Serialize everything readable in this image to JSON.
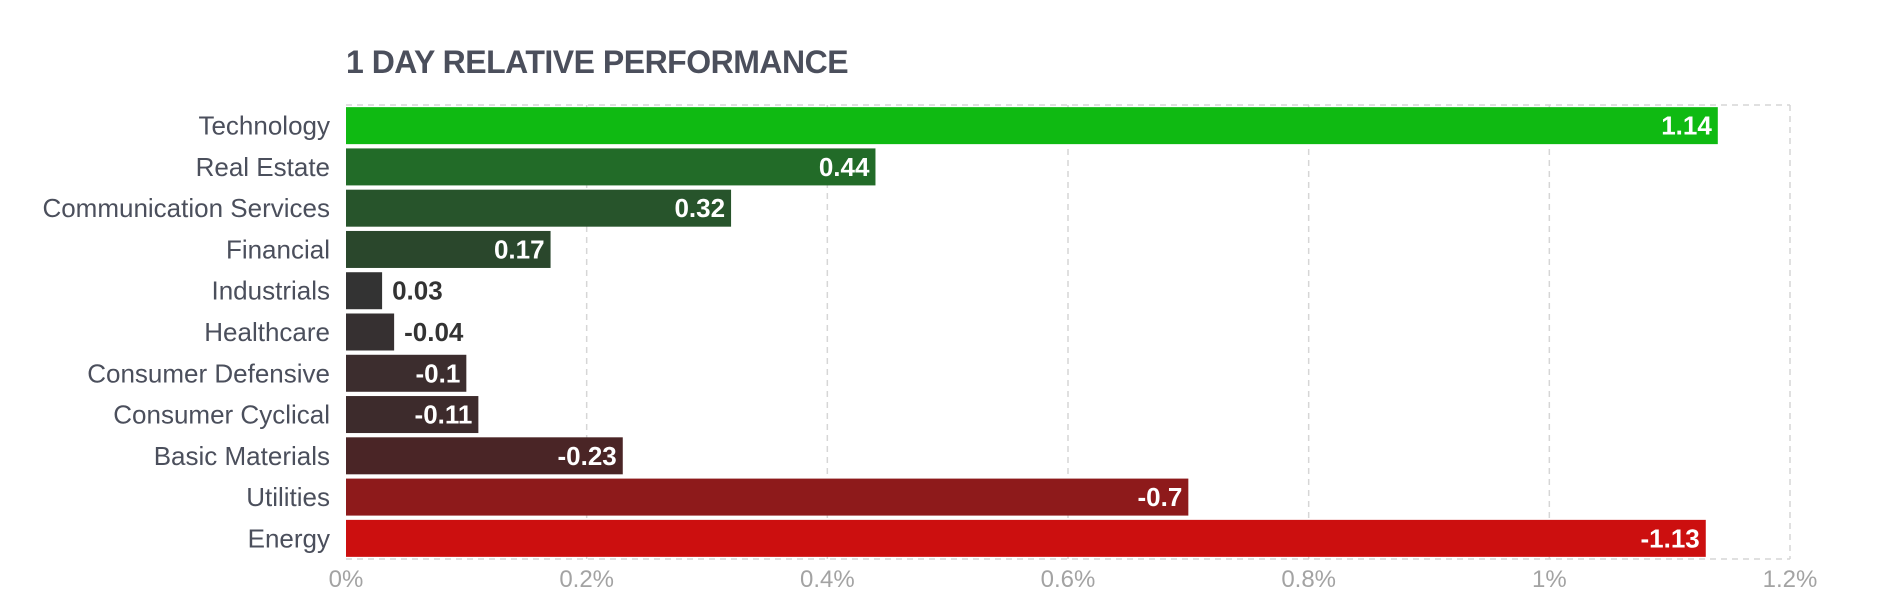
{
  "chart_data": {
    "type": "bar",
    "orientation": "horizontal",
    "title": "1 DAY RELATIVE PERFORMANCE",
    "xlabel": "",
    "ylabel": "",
    "xlim": [
      0,
      1.2
    ],
    "x_ticks": [
      0,
      0.2,
      0.4,
      0.6,
      0.8,
      1,
      1.2
    ],
    "x_tick_labels": [
      "0%",
      "0.2%",
      "0.4%",
      "0.6%",
      "0.8%",
      "1%",
      "1.2%"
    ],
    "grid": true,
    "bar_magnitude": "absolute value",
    "categories": [
      "Technology",
      "Real Estate",
      "Communication Services",
      "Financial",
      "Industrials",
      "Healthcare",
      "Consumer Defensive",
      "Consumer Cyclical",
      "Basic Materials",
      "Utilities",
      "Energy"
    ],
    "values": [
      1.14,
      0.44,
      0.32,
      0.17,
      0.03,
      -0.04,
      -0.1,
      -0.11,
      -0.23,
      -0.7,
      -1.13
    ],
    "value_labels": [
      "1.14",
      "0.44",
      "0.32",
      "0.17",
      "0.03",
      "-0.04",
      "-0.1",
      "-0.11",
      "-0.23",
      "-0.7",
      "-1.13"
    ],
    "bar_colors": [
      "#0fba12",
      "#226b28",
      "#27542b",
      "#2a472c",
      "#333333",
      "#363031",
      "#3c2d2e",
      "#3d2b2c",
      "#4a2526",
      "#8e1a1b",
      "#cc0f0f"
    ]
  }
}
